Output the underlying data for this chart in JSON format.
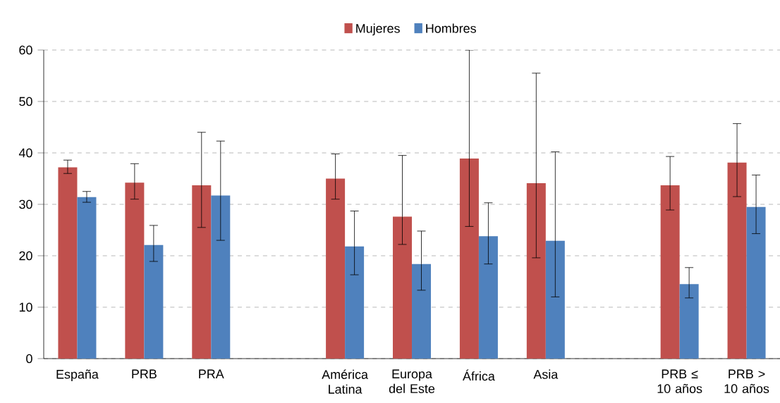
{
  "chart_data": {
    "type": "bar",
    "categories": [
      "España",
      "PRB",
      "PRA",
      null,
      "América Latina",
      "Europa del Este",
      "África",
      "Asia",
      null,
      "PRB ≤ 10 años",
      "PRB > 10 años"
    ],
    "series": [
      {
        "name": "Mujeres",
        "color": "#c0504d",
        "values": [
          37.2,
          34.2,
          33.7,
          null,
          35.0,
          27.6,
          38.9,
          34.1,
          null,
          33.7,
          38.1
        ],
        "errors": [
          [
            36.0,
            38.6
          ],
          [
            31.0,
            37.9
          ],
          [
            25.5,
            44.0
          ],
          null,
          [
            31.0,
            39.8
          ],
          [
            22.2,
            39.5
          ],
          [
            25.7,
            60.0
          ],
          [
            19.6,
            55.5
          ],
          null,
          [
            28.9,
            39.3
          ],
          [
            31.5,
            45.7
          ]
        ]
      },
      {
        "name": "Hombres",
        "color": "#4f81bd",
        "values": [
          31.4,
          22.1,
          31.7,
          null,
          21.8,
          18.4,
          23.8,
          22.9,
          null,
          14.5,
          29.5
        ],
        "errors": [
          [
            30.4,
            32.5
          ],
          [
            18.9,
            25.9
          ],
          [
            23.0,
            42.3
          ],
          null,
          [
            16.3,
            28.7
          ],
          [
            13.3,
            24.8
          ],
          [
            18.4,
            30.3
          ],
          [
            12.0,
            40.2
          ],
          null,
          [
            11.8,
            17.7
          ],
          [
            24.3,
            35.7
          ]
        ]
      }
    ],
    "ylim": [
      0,
      60
    ],
    "yticks": [
      0,
      10,
      20,
      30,
      40,
      50,
      60
    ],
    "grid": "y",
    "legend": "top"
  }
}
